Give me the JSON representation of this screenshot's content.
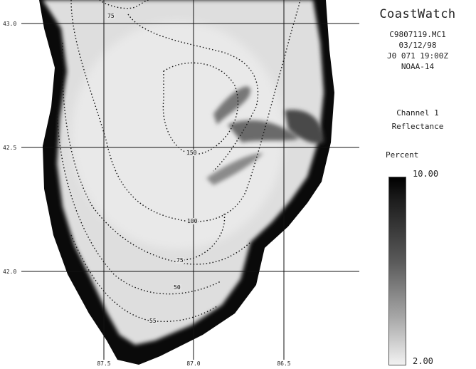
{
  "map": {
    "lat_labels": [
      "43.0",
      "42.5",
      "42.0"
    ],
    "lon_labels": [
      "87.5",
      "87.0",
      "86.5"
    ],
    "contour_labels": [
      "75",
      "150",
      "100",
      "75",
      "50",
      "55"
    ]
  },
  "legend": {
    "product": "CoastWatch",
    "image_id": "C9807119.MC1",
    "date": "03/12/98",
    "julian_time": "J0 071 19:00Z",
    "satellite": "NOAA-14",
    "channel": "Channel 1",
    "quantity": "Reflectance",
    "units": "Percent",
    "colorbar_max": "10.00",
    "colorbar_min": "2.00",
    "colorbar_colors": [
      "#000000",
      "#ffffff"
    ]
  }
}
